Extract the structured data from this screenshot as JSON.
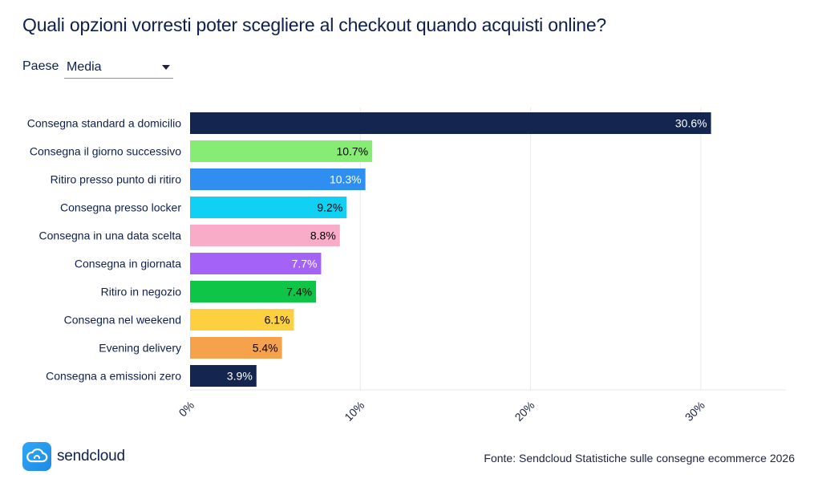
{
  "title": "Quali opzioni vorresti poter scegliere al checkout quando acquisti online?",
  "filter": {
    "label": "Paese",
    "value": "Media"
  },
  "chart_data": {
    "type": "bar",
    "orientation": "horizontal",
    "categories": [
      "Consegna standard a domicilio",
      "Consegna il giorno successivo",
      "Ritiro presso punto di ritiro",
      "Consegna presso locker",
      "Consegna in una data scelta",
      "Consegna in giornata",
      "Ritiro in negozio",
      "Consegna nel weekend",
      "Evening delivery",
      "Consegna a emissioni zero"
    ],
    "values": [
      30.6,
      10.7,
      10.3,
      9.2,
      8.8,
      7.7,
      7.4,
      6.1,
      5.4,
      3.9
    ],
    "value_labels": [
      "30.6%",
      "10.7%",
      "10.3%",
      "9.2%",
      "8.8%",
      "7.7%",
      "7.4%",
      "6.1%",
      "5.4%",
      "3.9%"
    ],
    "colors": [
      "#14264f",
      "#86ec74",
      "#2f8ff0",
      "#10d0f4",
      "#f8acc8",
      "#a562f6",
      "#0ec548",
      "#fdd040",
      "#f6a24c",
      "#14264f"
    ],
    "label_colors": [
      "#ffffff",
      "#000000",
      "#ffffff",
      "#000000",
      "#000000",
      "#ffffff",
      "#000000",
      "#000000",
      "#000000",
      "#ffffff"
    ],
    "xlim": [
      0,
      35
    ],
    "xticks": [
      0,
      10,
      20,
      30
    ],
    "xtick_labels": [
      "0%",
      "10%",
      "20%",
      "30%"
    ],
    "grid": true
  },
  "branding": {
    "logo_text": "sendcloud",
    "logo_icon": "cloud-icon"
  },
  "source": "Fonte: Sendcloud Statistiche sulle consegne ecommerce 2026"
}
